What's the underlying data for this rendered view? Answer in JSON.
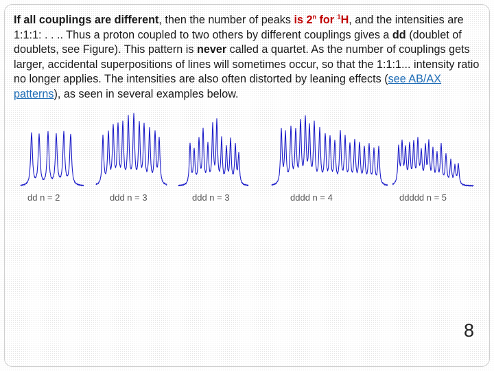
{
  "paragraph": {
    "s1": "If all couplings are different",
    "s2": ", then the number of peaks ",
    "s3": "is 2",
    "s4": "n",
    "s5": " for ",
    "s6": "1",
    "s7": "H",
    "s8": ", and the intensities are 1:1:1: . . .. Thus a proton coupled to two others by different couplings gives a ",
    "s9": "dd",
    "s10": " (doublet of doublets, see Figure). This pattern is ",
    "s11": "never",
    "s12": " called a quartet. As the number of couplings gets larger, accidental superpositions of lines will sometimes occur, so that the 1:1:1... intensity ratio no longer applies. The intensities are also often distorted by leaning effects (",
    "link": "see AB/AX patterns",
    "s13": "), as seen in several examples below."
  },
  "spectra": [
    {
      "label": "dd   n = 2"
    },
    {
      "label": "ddd  n = 3"
    },
    {
      "label": "ddd  n = 3"
    },
    {
      "label": "dddd  n = 4"
    },
    {
      "label": "ddddd  n = 5"
    }
  ],
  "colors": {
    "spectrum": "#1c1cc8",
    "highlight": "#c00000",
    "link": "#1f6db6"
  },
  "page_number": "8"
}
